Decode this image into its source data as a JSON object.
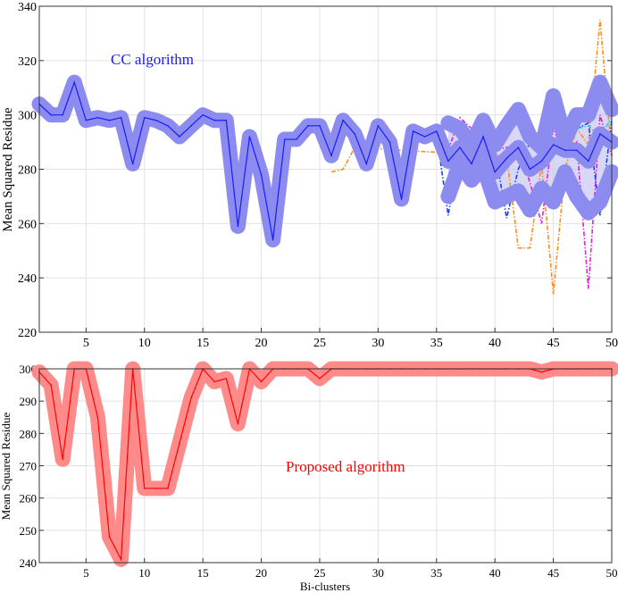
{
  "chart_data": [
    {
      "type": "line",
      "annotation": "CC algorithm",
      "ylabel": "Mean Squared Residue",
      "xlabel": "",
      "xlim": [
        1,
        50
      ],
      "ylim": [
        220,
        340
      ],
      "xticks": [
        5,
        10,
        15,
        20,
        25,
        30,
        35,
        40,
        45,
        50
      ],
      "yticks": [
        220,
        240,
        260,
        280,
        300,
        320,
        340
      ],
      "grid": true,
      "colors": {
        "main": "#1a1aff",
        "band": "#8c8cf0",
        "fill": "#c8c8f2",
        "orange": "#ff8c1a",
        "magenta": "#e01ee0",
        "blue": "#1a3cff",
        "cyan": "#20c8e0"
      },
      "series": [
        {
          "key": "main",
          "x": [
            1,
            2,
            3,
            4,
            5,
            6,
            7,
            8,
            9,
            10,
            11,
            12,
            13,
            14,
            15,
            16,
            17,
            18,
            19,
            20,
            21,
            22,
            23,
            24,
            25,
            26,
            27,
            28,
            29,
            30,
            31,
            32,
            33,
            34,
            35,
            36,
            37,
            38,
            39,
            40,
            41,
            42,
            43,
            44,
            45,
            46,
            47,
            48,
            49,
            50
          ],
          "values": [
            304,
            300,
            300,
            312,
            298,
            299,
            298,
            299,
            282,
            299,
            298,
            296,
            292,
            296,
            300,
            298,
            298,
            259,
            292,
            278,
            254,
            291,
            291,
            296,
            296,
            285,
            298,
            293,
            282,
            296,
            290,
            269,
            294,
            292,
            294,
            283,
            288,
            282,
            292,
            279,
            284,
            288,
            280,
            283,
            289,
            287,
            287,
            283,
            293,
            290
          ]
        },
        {
          "key": "upper",
          "x": [
            36,
            37,
            38,
            39,
            40,
            41,
            42,
            43,
            44,
            45,
            46,
            47,
            48,
            49,
            50
          ],
          "values": [
            297,
            295,
            289,
            298,
            289,
            296,
            302,
            292,
            288,
            307,
            291,
            300,
            300,
            312,
            302
          ]
        },
        {
          "key": "lower",
          "x": [
            36,
            37,
            38,
            39,
            40,
            41,
            42,
            43,
            44,
            45,
            46,
            47,
            48,
            49,
            50
          ],
          "values": [
            270,
            282,
            276,
            281,
            268,
            270,
            272,
            265,
            273,
            268,
            279,
            270,
            264,
            268,
            279
          ]
        },
        {
          "key": "orange",
          "x": [
            26,
            27,
            28,
            40,
            41,
            42,
            43,
            44,
            45,
            46,
            47,
            48,
            49,
            50
          ],
          "values": [
            279,
            280,
            288,
            285,
            285,
            251,
            251,
            282,
            234,
            280,
            295,
            289,
            335,
            285
          ]
        },
        {
          "key": "magenta",
          "x": [
            36,
            37,
            38,
            39,
            40,
            41,
            42,
            43,
            44,
            45,
            46,
            47,
            48,
            49,
            50
          ],
          "values": [
            287,
            299,
            295,
            290,
            287,
            288,
            289,
            275,
            260,
            295,
            285,
            290,
            236,
            300,
            285
          ]
        },
        {
          "key": "blue",
          "x": [
            35,
            36,
            37,
            38,
            39,
            40,
            41,
            42,
            43,
            44,
            45,
            46,
            47,
            48,
            49,
            50
          ],
          "values": [
            293,
            263,
            288,
            283,
            291,
            287,
            262,
            280,
            290,
            288,
            290,
            285,
            295,
            297,
            263,
            298
          ]
        },
        {
          "key": "cyan",
          "x": [
            45,
            46,
            47,
            48,
            49,
            50
          ],
          "values": [
            285,
            290,
            295,
            296,
            292,
            299
          ]
        }
      ]
    },
    {
      "type": "line",
      "annotation": "Proposed algorithm",
      "ylabel": "Mean Squared Residue",
      "xlabel": "Bi-clusters",
      "xlim": [
        1,
        50
      ],
      "ylim": [
        240,
        300
      ],
      "xticks": [
        5,
        10,
        15,
        20,
        25,
        30,
        35,
        40,
        45,
        50
      ],
      "yticks": [
        240,
        250,
        260,
        270,
        280,
        290,
        300
      ],
      "grid": true,
      "colors": {
        "main": "#ff0000",
        "band": "#ff8a8a"
      },
      "series": [
        {
          "key": "main",
          "x": [
            1,
            2,
            3,
            4,
            5,
            6,
            7,
            8,
            9,
            10,
            11,
            12,
            13,
            14,
            15,
            16,
            17,
            18,
            19,
            20,
            21,
            22,
            23,
            24,
            25,
            26,
            27,
            28,
            29,
            30,
            31,
            32,
            33,
            34,
            35,
            36,
            37,
            38,
            39,
            40,
            41,
            42,
            43,
            44,
            45,
            46,
            47,
            48,
            49,
            50
          ],
          "values": [
            299,
            295,
            272,
            300,
            300,
            285,
            248,
            241,
            300,
            263,
            263,
            263,
            277,
            291,
            300,
            296,
            297,
            283,
            300,
            296,
            300,
            300,
            300,
            300,
            297,
            300,
            300,
            300,
            300,
            300,
            300,
            300,
            300,
            300,
            300,
            300,
            300,
            300,
            300,
            300,
            300,
            300,
            300,
            299,
            300,
            300,
            300,
            300,
            300,
            300
          ]
        }
      ]
    }
  ]
}
